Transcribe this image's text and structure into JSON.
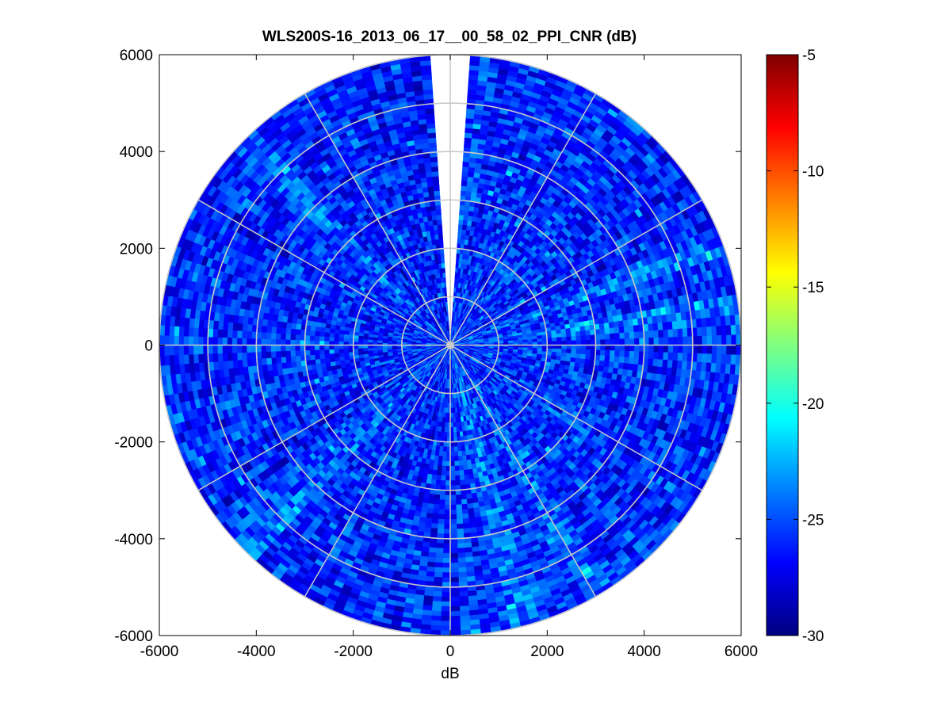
{
  "window": {
    "title": "WLS200S-16_2013_06_17__00_58_02_PPI_CNR (dB)"
  },
  "chart_data": {
    "type": "heatmap",
    "subtype": "polar-ppi",
    "title": "WLS200S-16_2013_06_17__00_58_02_PPI_CNR (dB)",
    "xlabel": "dB",
    "ylabel": "",
    "xlim": [
      -6000,
      6000
    ],
    "ylim": [
      -6000,
      6000
    ],
    "x_ticks": [
      -6000,
      -4000,
      -2000,
      0,
      2000,
      4000,
      6000
    ],
    "y_ticks": [
      6000,
      4000,
      2000,
      0,
      -2000,
      -4000,
      -6000
    ],
    "x_tick_labels": [
      "-6000",
      "-4000",
      "-2000",
      "0",
      "2000",
      "4000",
      "6000"
    ],
    "y_tick_labels": [
      "6000",
      "4000",
      "2000",
      "0",
      "-2000",
      "-4000",
      "-6000"
    ],
    "max_range": 6000,
    "range_rings": [
      1000,
      2000,
      3000,
      4000,
      5000,
      6000
    ],
    "spokes_deg": [
      0,
      30,
      60,
      90,
      120,
      150,
      180,
      210,
      240,
      270,
      300,
      330
    ],
    "missing_sector_deg": [
      -4,
      4
    ],
    "grid": true,
    "colorbar": {
      "position": "right",
      "min": -30,
      "max": -5,
      "ticks": [
        -5,
        -10,
        -15,
        -20,
        -25,
        -30
      ],
      "tick_labels": [
        "-5",
        "-10",
        "-15",
        "-20",
        "-25",
        "-30"
      ],
      "colormap": "jet"
    },
    "value_range_observed": [
      -30,
      -22
    ],
    "brighter_sectors_deg": [
      70,
      83,
      150,
      165,
      225,
      315
    ]
  }
}
